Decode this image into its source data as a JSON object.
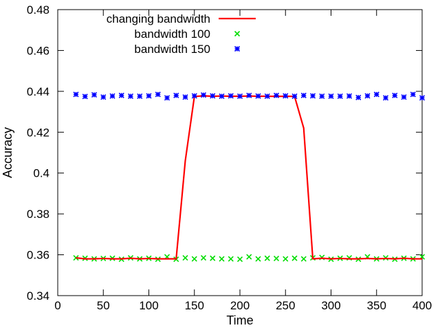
{
  "chart_data": {
    "type": "line",
    "title": "",
    "xlabel": "Time",
    "ylabel": "Accuracy",
    "xlim": [
      0,
      400
    ],
    "ylim": [
      0.34,
      0.48
    ],
    "x_ticks": [
      "0",
      "50",
      "100",
      "150",
      "200",
      "250",
      "300",
      "350",
      "400"
    ],
    "y_ticks": [
      "0.34",
      "0.36",
      "0.38",
      "0.4",
      "0.42",
      "0.44",
      "0.46",
      "0.48"
    ],
    "grid": false,
    "legend_position": "top-left",
    "series": [
      {
        "name": "changing bandwidth",
        "style": "line",
        "color": "#ff0000",
        "x": [
          20,
          30,
          40,
          50,
          60,
          70,
          80,
          90,
          100,
          110,
          120,
          130,
          140,
          150,
          160,
          170,
          180,
          190,
          200,
          210,
          220,
          230,
          240,
          250,
          260,
          270,
          280,
          290,
          300,
          310,
          320,
          330,
          340,
          350,
          360,
          370,
          380,
          390,
          400
        ],
        "y": [
          0.3585,
          0.358,
          0.358,
          0.3582,
          0.358,
          0.358,
          0.3583,
          0.358,
          0.3582,
          0.358,
          0.358,
          0.358,
          0.406,
          0.4375,
          0.4378,
          0.4376,
          0.4377,
          0.4376,
          0.4376,
          0.4377,
          0.4376,
          0.4376,
          0.4375,
          0.4376,
          0.4375,
          0.422,
          0.358,
          0.3583,
          0.358,
          0.3582,
          0.358,
          0.358,
          0.3582,
          0.358,
          0.3582,
          0.358,
          0.3583,
          0.358,
          0.358
        ]
      },
      {
        "name": "bandwidth 100",
        "style": "points",
        "marker": "x",
        "color": "#00dd00",
        "x": [
          20,
          30,
          40,
          50,
          60,
          70,
          80,
          90,
          100,
          110,
          120,
          130,
          140,
          150,
          160,
          170,
          180,
          190,
          200,
          210,
          220,
          230,
          240,
          250,
          260,
          270,
          280,
          290,
          300,
          310,
          320,
          330,
          340,
          350,
          360,
          370,
          380,
          390,
          400
        ],
        "y": [
          0.3585,
          0.3583,
          0.358,
          0.3582,
          0.3583,
          0.3578,
          0.3585,
          0.358,
          0.3583,
          0.3578,
          0.359,
          0.3578,
          0.3585,
          0.358,
          0.3585,
          0.3583,
          0.358,
          0.358,
          0.3578,
          0.359,
          0.358,
          0.3583,
          0.3582,
          0.358,
          0.3583,
          0.358,
          0.3585,
          0.3587,
          0.3578,
          0.3583,
          0.3585,
          0.3578,
          0.359,
          0.358,
          0.3585,
          0.3578,
          0.3583,
          0.358,
          0.359
        ]
      },
      {
        "name": "bandwidth 150",
        "style": "points",
        "marker": "star",
        "color": "#0000ff",
        "x": [
          20,
          30,
          40,
          50,
          60,
          70,
          80,
          90,
          100,
          110,
          120,
          130,
          140,
          150,
          160,
          170,
          180,
          190,
          200,
          210,
          220,
          230,
          240,
          250,
          260,
          270,
          280,
          290,
          300,
          310,
          320,
          330,
          340,
          350,
          360,
          370,
          380,
          390,
          400
        ],
        "y": [
          0.4385,
          0.4375,
          0.4383,
          0.4372,
          0.4377,
          0.438,
          0.4376,
          0.4376,
          0.4378,
          0.4385,
          0.4368,
          0.438,
          0.4372,
          0.4378,
          0.4382,
          0.4378,
          0.4376,
          0.4378,
          0.4376,
          0.438,
          0.4377,
          0.4376,
          0.438,
          0.4378,
          0.4376,
          0.438,
          0.4378,
          0.4376,
          0.4376,
          0.4376,
          0.4377,
          0.437,
          0.4378,
          0.4385,
          0.4368,
          0.438,
          0.4372,
          0.4385,
          0.4368
        ]
      }
    ]
  }
}
